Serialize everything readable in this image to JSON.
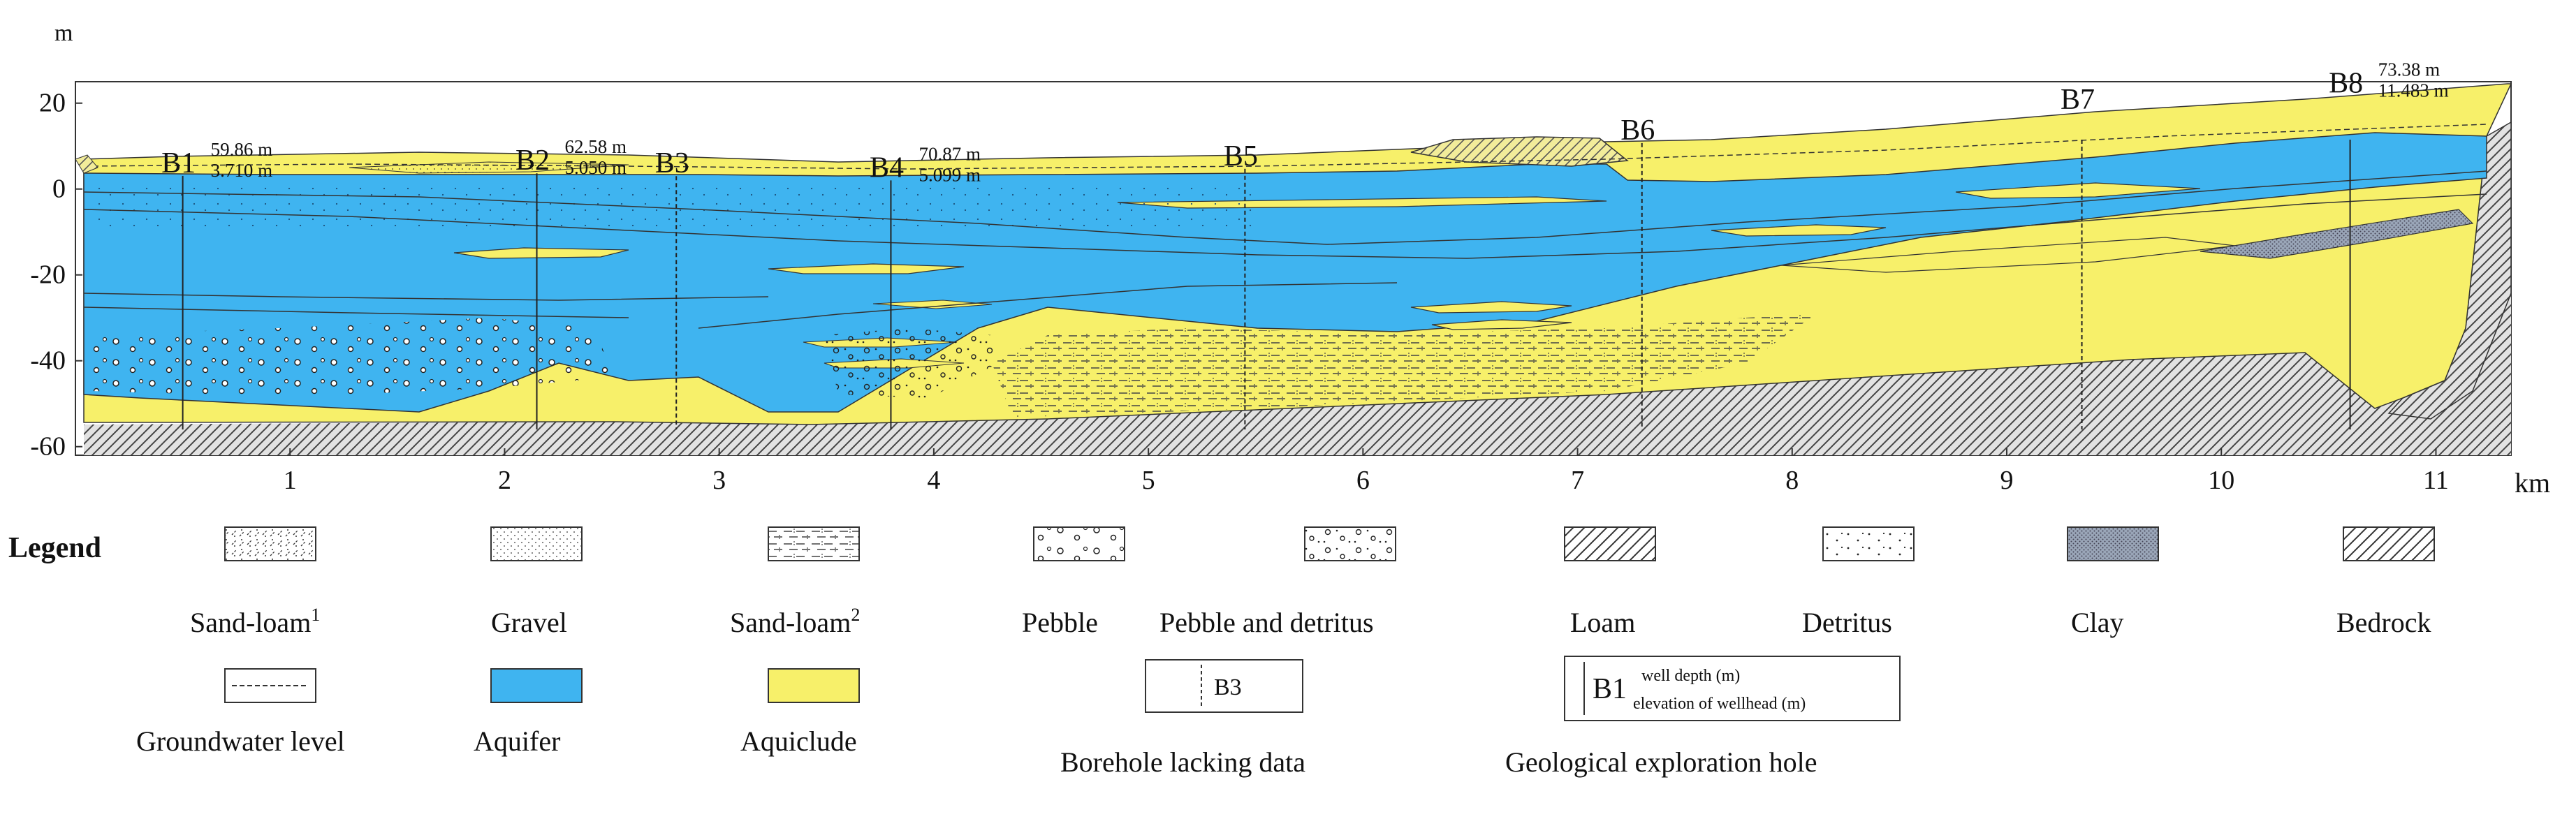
{
  "axes": {
    "y_unit": "m",
    "x_unit": "km",
    "y_ticks": [
      {
        "value": 20,
        "label": "20"
      },
      {
        "value": 0,
        "label": "0"
      },
      {
        "value": -20,
        "label": "-20"
      },
      {
        "value": -40,
        "label": "-40"
      },
      {
        "value": -60,
        "label": "-60"
      }
    ],
    "x_ticks": [
      {
        "value": 1,
        "label": "1"
      },
      {
        "value": 2,
        "label": "2"
      },
      {
        "value": 3,
        "label": "3"
      },
      {
        "value": 4,
        "label": "4"
      },
      {
        "value": 5,
        "label": "5"
      },
      {
        "value": 6,
        "label": "6"
      },
      {
        "value": 7,
        "label": "7"
      },
      {
        "value": 8,
        "label": "8"
      },
      {
        "value": 9,
        "label": "9"
      },
      {
        "value": 10,
        "label": "10"
      },
      {
        "value": 11,
        "label": "11"
      }
    ],
    "x_range": [
      0,
      11.35
    ],
    "y_range": [
      -62,
      25
    ]
  },
  "boreholes": [
    {
      "id": "B1",
      "x": 0.5,
      "depth": "59.86 m",
      "elev": "3.710 m",
      "type": "exploration"
    },
    {
      "id": "B2",
      "x": 2.15,
      "depth": "62.58 m",
      "elev": "5.050 m",
      "type": "exploration"
    },
    {
      "id": "B3",
      "x": 2.8,
      "depth": "",
      "elev": "",
      "type": "lacking"
    },
    {
      "id": "B4",
      "x": 3.8,
      "depth": "70.87 m",
      "elev": "5.099 m",
      "type": "exploration"
    },
    {
      "id": "B5",
      "x": 5.45,
      "depth": "",
      "elev": "",
      "type": "lacking"
    },
    {
      "id": "B6",
      "x": 7.3,
      "depth": "",
      "elev": "",
      "type": "lacking"
    },
    {
      "id": "B7",
      "x": 9.35,
      "depth": "",
      "elev": "",
      "type": "lacking"
    },
    {
      "id": "B8",
      "x": 10.6,
      "depth": "73.38 m",
      "elev": "11.483 m",
      "type": "exploration"
    }
  ],
  "legend": {
    "title": "Legend",
    "items": [
      {
        "key": "sand-loam-1",
        "label": "Sand-loam",
        "sup": "1"
      },
      {
        "key": "gravel",
        "label": "Gravel",
        "sup": ""
      },
      {
        "key": "sand-loam-2",
        "label": "Sand-loam",
        "sup": "2"
      },
      {
        "key": "pebble",
        "label": "Pebble",
        "sup": ""
      },
      {
        "key": "pebble-detritus",
        "label": "Pebble and detritus",
        "sup": ""
      },
      {
        "key": "loam",
        "label": "Loam",
        "sup": ""
      },
      {
        "key": "detritus",
        "label": "Detritus",
        "sup": ""
      },
      {
        "key": "clay",
        "label": "Clay",
        "sup": ""
      },
      {
        "key": "bedrock",
        "label": "Bedrock",
        "sup": ""
      },
      {
        "key": "groundwater-level",
        "label": "Groundwater level",
        "sup": ""
      },
      {
        "key": "aquifer",
        "label": "Aquifer",
        "sup": ""
      },
      {
        "key": "aquiclude",
        "label": "Aquiclude",
        "sup": ""
      },
      {
        "key": "borehole-lacking",
        "label": "Borehole lacking data",
        "sup": "",
        "sample_label": "B3"
      },
      {
        "key": "exploration-hole",
        "label": "Geological exploration hole",
        "sup": "",
        "sample_label": "B1",
        "sample_top": "well depth (m)",
        "sample_bottom": "elevation of wellhead (m)"
      }
    ]
  },
  "colors": {
    "aquifer": "#3fb4f0",
    "aquiclude": "#f7f06a",
    "bedrock_fill": "#e4e4e4",
    "line": "#222222"
  }
}
